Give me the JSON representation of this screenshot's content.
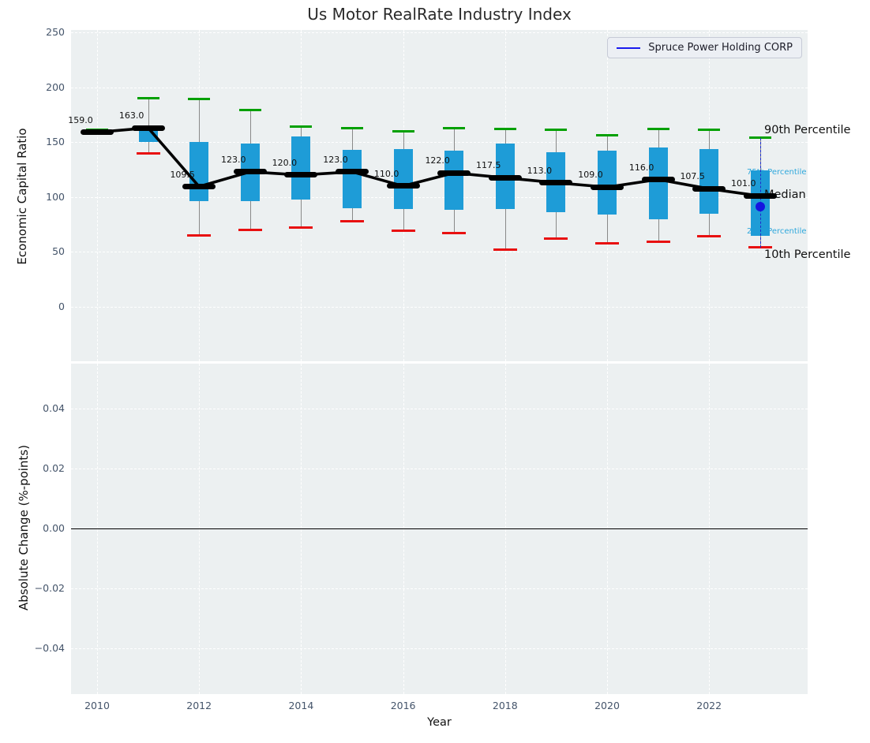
{
  "colors": {
    "plot_bg": "#ecf0f1",
    "grid": "#ffffff",
    "box": "#1e9cd7",
    "cap_high": "#00a000",
    "cap_low": "#e81010",
    "median": "#000000",
    "company": "#1414e0",
    "tick_text": "#44546a",
    "annotation_minor": "#2fa8dc",
    "legend_line": "#1a1aee"
  },
  "chart_data": [
    {
      "type": "boxplot+line",
      "title": "Us Motor RealRate Industry Index",
      "ylabel": "Economic Capital Ratio",
      "ylim": [
        -50,
        252
      ],
      "grid": true,
      "legend": {
        "label": "Spruce Power Holding CORP",
        "position": "upper right"
      },
      "y_axis": {
        "values": [
          250,
          200,
          150,
          100,
          50,
          0
        ],
        "labels": [
          "250",
          "200",
          "150",
          "100",
          "50",
          "0"
        ]
      },
      "x_axis": {
        "values": [
          2010,
          2012,
          2014,
          2016,
          2018,
          2020,
          2022
        ],
        "labels": [
          "2010",
          "2012",
          "2014",
          "2016",
          "2018",
          "2020",
          "2022"
        ]
      },
      "boxes": [
        {
          "year": 2010,
          "p90": 161.5,
          "p75": null,
          "median": 159.0,
          "p25": null,
          "p10": null,
          "label": "159.0"
        },
        {
          "year": 2011,
          "p90": 190,
          "p75": 160,
          "median": 163.0,
          "p25": 150,
          "p10": 140,
          "label": "163.0"
        },
        {
          "year": 2012,
          "p90": 189,
          "p75": 150,
          "median": 109.5,
          "p25": 96,
          "p10": 65,
          "label": "109.5"
        },
        {
          "year": 2013,
          "p90": 179,
          "p75": 149,
          "median": 123.0,
          "p25": 96,
          "p10": 70,
          "label": "123.0"
        },
        {
          "year": 2014,
          "p90": 164,
          "p75": 155,
          "median": 120.0,
          "p25": 98,
          "p10": 72,
          "label": "120.0"
        },
        {
          "year": 2015,
          "p90": 163,
          "p75": 143,
          "median": 123.0,
          "p25": 90,
          "p10": 78,
          "label": "123.0"
        },
        {
          "year": 2016,
          "p90": 160,
          "p75": 144,
          "median": 110.0,
          "p25": 89,
          "p10": 69,
          "label": "110.0"
        },
        {
          "year": 2017,
          "p90": 163,
          "p75": 142,
          "median": 122.0,
          "p25": 88,
          "p10": 67,
          "label": "122.0"
        },
        {
          "year": 2018,
          "p90": 162,
          "p75": 149,
          "median": 117.5,
          "p25": 89,
          "p10": 52,
          "label": "117.5"
        },
        {
          "year": 2019,
          "p90": 161,
          "p75": 141,
          "median": 113.0,
          "p25": 86,
          "p10": 62,
          "label": "113.0"
        },
        {
          "year": 2020,
          "p90": 156,
          "p75": 142,
          "median": 109.0,
          "p25": 84,
          "p10": 58,
          "label": "109.0"
        },
        {
          "year": 2021,
          "p90": 162,
          "p75": 145,
          "median": 116.0,
          "p25": 80,
          "p10": 59,
          "label": "116.0"
        },
        {
          "year": 2022,
          "p90": 161,
          "p75": 144,
          "median": 107.5,
          "p25": 85,
          "p10": 64,
          "label": "107.5"
        },
        {
          "year": 2023,
          "p90": 154,
          "p75": 124,
          "median": 101.0,
          "p25": 65,
          "p10": 54,
          "label": "101.0"
        }
      ],
      "company_point": {
        "year": 2023,
        "value": 91
      },
      "annotations": [
        {
          "label": "90th Percentile",
          "value": 154,
          "style": "major"
        },
        {
          "label": "75th Percentile",
          "value": 124,
          "style": "minor"
        },
        {
          "label": "Median",
          "value": 101,
          "style": "major"
        },
        {
          "label": "25th Percentile",
          "value": 65,
          "style": "minor"
        },
        {
          "label": "10th Percentile",
          "value": 54,
          "style": "major"
        }
      ]
    },
    {
      "type": "line",
      "ylabel": "Absolute Change (%-points)",
      "xlabel": "Year",
      "grid": true,
      "series": [],
      "zero_line": 0.0,
      "y_axis": {
        "values": [
          0.04,
          0.02,
          0.0,
          -0.02,
          -0.04
        ],
        "labels": [
          "0.04",
          "0.02",
          "0.00",
          "−0.02",
          "−0.04"
        ]
      },
      "x_axis": {
        "values": [
          2010,
          2012,
          2014,
          2016,
          2018,
          2020,
          2022
        ],
        "labels": [
          "2010",
          "2012",
          "2014",
          "2016",
          "2018",
          "2020",
          "2022"
        ]
      }
    }
  ]
}
